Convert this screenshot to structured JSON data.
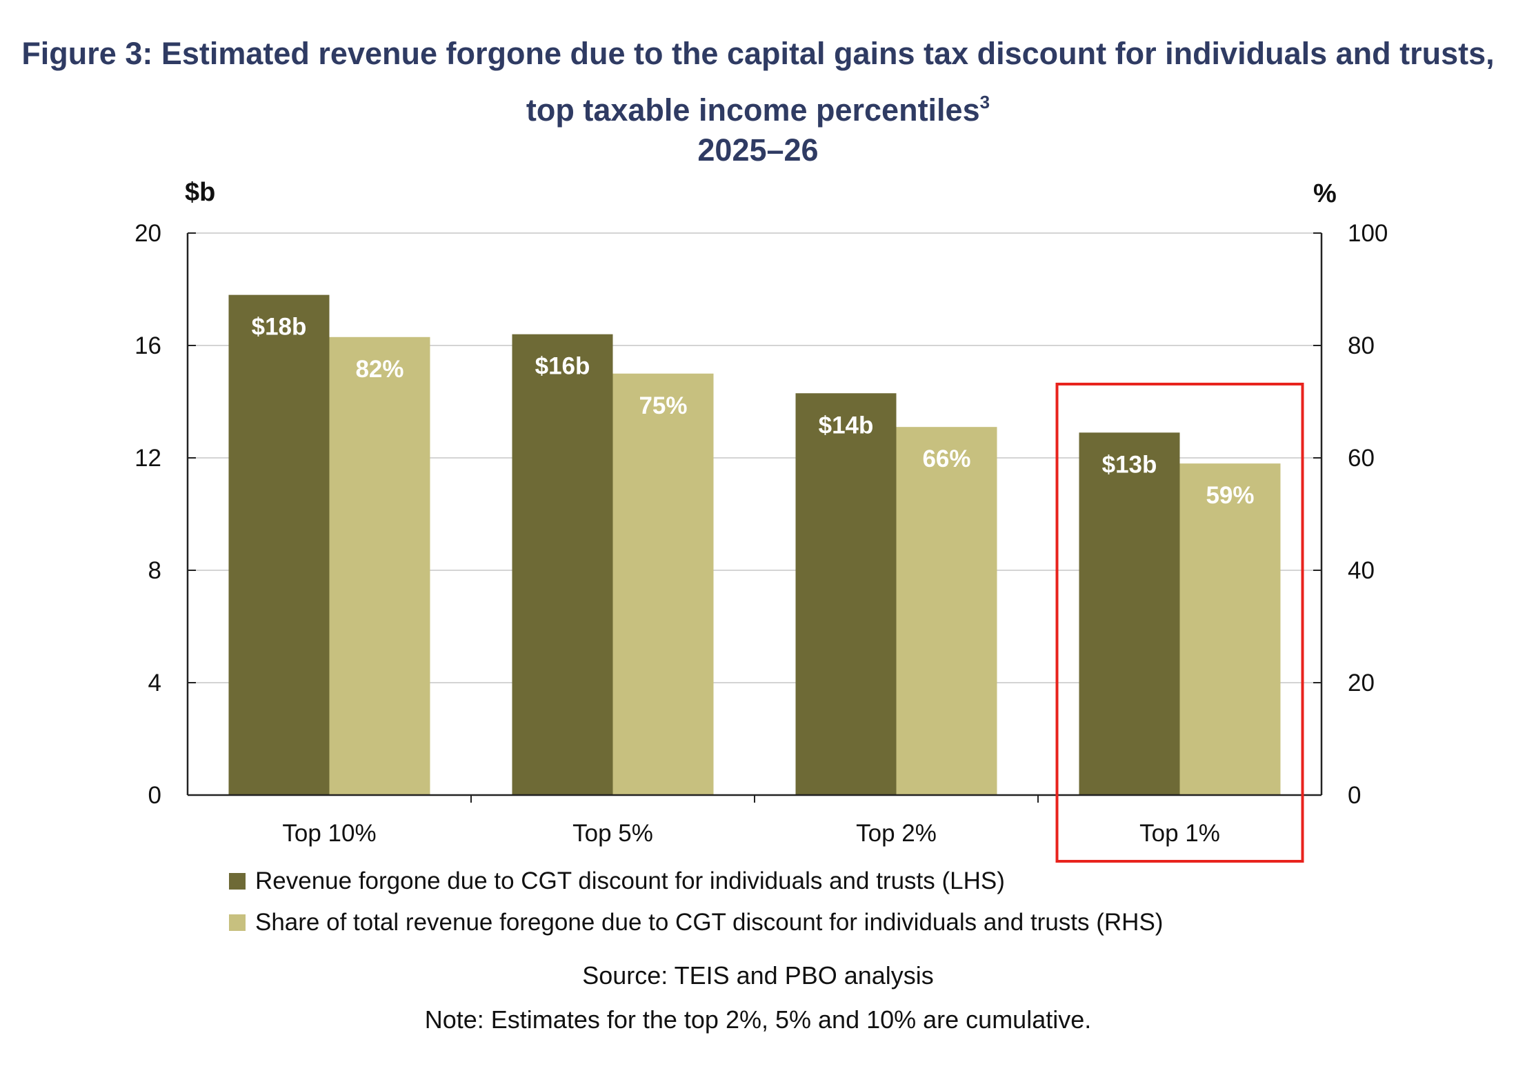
{
  "title": {
    "line1": "Figure 3: Estimated revenue forgone due to the capital gains tax discount for individuals and trusts,",
    "line2": "top taxable income percentiles",
    "line2_superscript": "3",
    "line3": "2025–26"
  },
  "colors": {
    "lhs_series": "#6e6a36",
    "rhs_series": "#c7c07f",
    "highlight_box": "#e8231d",
    "title": "#2f3b63"
  },
  "chart_data": {
    "type": "bar",
    "categories": [
      "Top 10%",
      "Top 5%",
      "Top 2%",
      "Top 1%"
    ],
    "series": [
      {
        "name": "Revenue forgone due to CGT discount for individuals and trusts (LHS)",
        "axis": "left",
        "values": [
          17.8,
          16.4,
          14.3,
          12.9
        ],
        "data_labels": [
          "$18b",
          "$16b",
          "$14b",
          "$13b"
        ]
      },
      {
        "name": "Share of total revenue foregone due to CGT discount for individuals and trusts (RHS)",
        "axis": "right",
        "values": [
          81.5,
          75,
          65.5,
          59
        ],
        "data_labels": [
          "82%",
          "75%",
          "66%",
          "59%"
        ]
      }
    ],
    "left_axis": {
      "unit": "$b",
      "min": 0,
      "max": 20,
      "ticks": [
        0,
        4,
        8,
        12,
        16,
        20
      ],
      "tick_labels": [
        "0",
        "4",
        "8",
        "12",
        "16",
        "20"
      ]
    },
    "right_axis": {
      "unit": "%",
      "min": 0,
      "max": 100,
      "ticks": [
        0,
        20,
        40,
        60,
        80,
        100
      ],
      "tick_labels": [
        "0",
        "20",
        "40",
        "60",
        "80",
        "100"
      ]
    },
    "grid": true,
    "highlight_category": "Top 1%",
    "legend_position": "bottom"
  },
  "source": "Source: TEIS and PBO analysis",
  "note": "Note: Estimates for the top 2%, 5% and 10% are cumulative."
}
